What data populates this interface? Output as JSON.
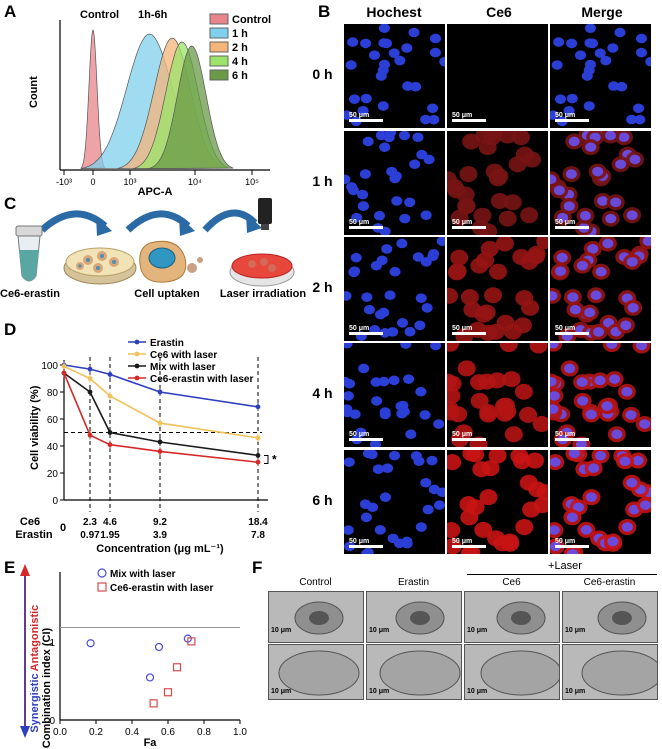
{
  "panels": {
    "A": "A",
    "B": "B",
    "C": "C",
    "D": "D",
    "E": "E",
    "F": "F"
  },
  "panelA": {
    "annotation_control": "Control",
    "annotation_time": "1h-6h",
    "ylabel": "Count",
    "xlabel": "APC-A",
    "ticks": [
      "-10³",
      "0",
      "10³",
      "10⁴",
      "10⁵"
    ],
    "legend": [
      "Control",
      "1 h",
      "2 h",
      "4 h",
      "6 h"
    ],
    "colors": [
      "#e8858a",
      "#7fd0ee",
      "#f4b47a",
      "#9be36a",
      "#6a9a48"
    ]
  },
  "chart_data": [
    {
      "type": "area",
      "title": "",
      "xlabel": "APC-A",
      "ylabel": "Count",
      "x_scale": "biexponential",
      "x_ticks": [
        "-10³",
        "0",
        "10³",
        "10⁴",
        "10⁵"
      ],
      "series": [
        {
          "name": "Control",
          "peak_log": 0.0,
          "color": "#e8858a"
        },
        {
          "name": "1 h",
          "peak_log": 3.3,
          "color": "#7fd0ee"
        },
        {
          "name": "2 h",
          "peak_log": 3.65,
          "color": "#f4b47a"
        },
        {
          "name": "4 h",
          "peak_log": 3.8,
          "color": "#9be36a"
        },
        {
          "name": "6 h",
          "peak_log": 3.95,
          "color": "#6a9a48"
        }
      ]
    },
    {
      "type": "line",
      "title": "",
      "xlabel": "Concentration (μg mL⁻¹)",
      "ylabel": "Cell viability (%)",
      "ylim": [
        0,
        100
      ],
      "yticks": [
        0,
        20,
        40,
        60,
        80,
        100
      ],
      "x_index": [
        0,
        1,
        2,
        3,
        4
      ],
      "ce6_ticks": [
        "0",
        "2.3",
        "4.6",
        "9.2",
        "18.4"
      ],
      "erastin_ticks": [
        "0",
        "0.97",
        "1.95",
        "3.9",
        "7.8"
      ],
      "reference_line": 50,
      "series": [
        {
          "name": "Erastin",
          "color": "#2e3fbf",
          "values": [
            100,
            97,
            93,
            80,
            69
          ]
        },
        {
          "name": "Ce6 with laser",
          "color": "#f2c15a",
          "values": [
            99,
            90,
            77,
            57,
            46
          ]
        },
        {
          "name": "Mix with laser",
          "color": "#1a1a1a",
          "values": [
            94,
            80,
            50,
            43,
            33
          ]
        },
        {
          "name": "Ce6-erastin with laser",
          "color": "#d62828",
          "values": [
            94,
            48,
            41,
            36,
            28
          ]
        }
      ],
      "annotation": "*"
    },
    {
      "type": "scatter",
      "title": "",
      "xlabel": "Fa",
      "ylabel": "Combination index (CI)",
      "xlim": [
        0,
        1.0
      ],
      "ylim": [
        0,
        1.6
      ],
      "xticks": [
        "0.0",
        "0.2",
        "0.4",
        "0.6",
        "0.8",
        "1.0"
      ],
      "reference_line": 1,
      "series": [
        {
          "name": "Mix with laser",
          "marker": "circle",
          "color": "#4b4bd6",
          "x": [
            0.17,
            0.5,
            0.55,
            0.71
          ],
          "y": [
            0.83,
            0.46,
            0.79,
            0.88
          ]
        },
        {
          "name": "Ce6-erastin with laser",
          "marker": "square",
          "color": "#d64b4b",
          "x": [
            0.52,
            0.6,
            0.65,
            0.73
          ],
          "y": [
            0.18,
            0.3,
            0.57,
            0.85
          ]
        }
      ]
    }
  ],
  "panelB": {
    "columns": [
      "Hochest",
      "Ce6",
      "Merge"
    ],
    "rows": [
      "0 h",
      "1 h",
      "2 h",
      "4 h",
      "6 h"
    ],
    "scale": "50 μm"
  },
  "panelC": {
    "labels": [
      "Ce6-erastin",
      "Cell uptaken",
      "Laser irradiation"
    ]
  },
  "panelD": {
    "ylabel": "Cell viability  (%)",
    "yticks": [
      "0",
      "20",
      "40",
      "60",
      "80",
      "100"
    ],
    "row_ce6": "Ce6",
    "row_erastin": "Erastin",
    "xlabel": "Concentration  (μg mL⁻¹)",
    "x_zero": "0"
  },
  "panelE": {
    "axis_label": "Combination index (CI)",
    "antagonistic": "Antagonistic",
    "synergistic": "Synergistic",
    "xlabel": "Fa",
    "yline": "1",
    "y0": "0"
  },
  "panelF": {
    "headers": [
      "Control",
      "Erastin",
      "Ce6",
      "Ce6-erastin"
    ],
    "group_label": "+Laser",
    "scale_top": "10 μm",
    "scale_bottom": "10 μm"
  }
}
